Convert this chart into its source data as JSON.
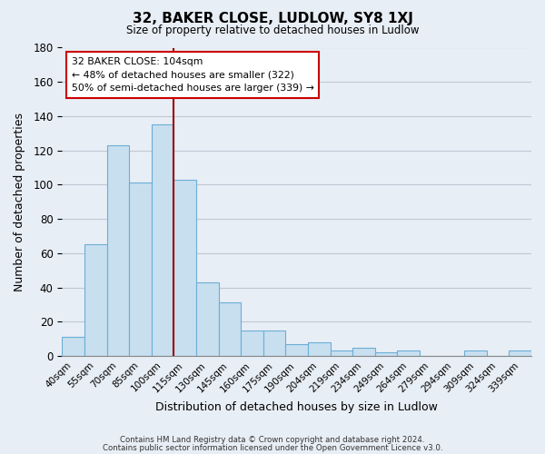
{
  "title": "32, BAKER CLOSE, LUDLOW, SY8 1XJ",
  "subtitle": "Size of property relative to detached houses in Ludlow",
  "xlabel": "Distribution of detached houses by size in Ludlow",
  "ylabel": "Number of detached properties",
  "bar_labels": [
    "40sqm",
    "55sqm",
    "70sqm",
    "85sqm",
    "100sqm",
    "115sqm",
    "130sqm",
    "145sqm",
    "160sqm",
    "175sqm",
    "190sqm",
    "204sqm",
    "219sqm",
    "234sqm",
    "249sqm",
    "264sqm",
    "279sqm",
    "294sqm",
    "309sqm",
    "324sqm",
    "339sqm"
  ],
  "bar_values": [
    11,
    65,
    123,
    101,
    135,
    103,
    43,
    31,
    15,
    15,
    7,
    8,
    3,
    5,
    2,
    3,
    0,
    0,
    3,
    0,
    3
  ],
  "bar_color": "#c8dff0",
  "bar_edge_color": "#6baed6",
  "vline_x_index": 4,
  "vline_color": "#990000",
  "ylim": [
    0,
    180
  ],
  "yticks": [
    0,
    20,
    40,
    60,
    80,
    100,
    120,
    140,
    160,
    180
  ],
  "annotation_title": "32 BAKER CLOSE: 104sqm",
  "annotation_line1": "← 48% of detached houses are smaller (322)",
  "annotation_line2": "50% of semi-detached houses are larger (339) →",
  "footer_line1": "Contains HM Land Registry data © Crown copyright and database right 2024.",
  "footer_line2": "Contains public sector information licensed under the Open Government Licence v3.0.",
  "background_color": "#e8eef5",
  "plot_bg_color": "#e8eef5",
  "grid_color": "#c0c8d4"
}
